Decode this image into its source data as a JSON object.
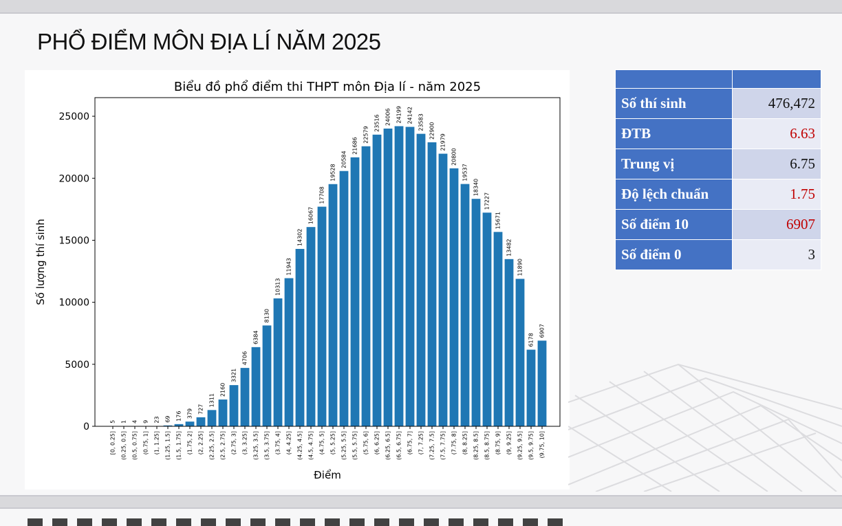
{
  "page": {
    "title": "PHỔ ĐIỂM MÔN ĐỊA LÍ NĂM 2025"
  },
  "chart_data": {
    "type": "bar",
    "title": "Biểu đồ phổ điểm thi THPT môn Địa lí - năm 2025",
    "xlabel": "Điểm",
    "ylabel": "Số lượng thí sinh",
    "ylim": [
      0,
      26500
    ],
    "yticks": [
      0,
      5000,
      10000,
      15000,
      20000,
      25000
    ],
    "grid": false,
    "color": "#1f77b4",
    "categories": [
      "[0, 0.25]",
      "(0.25, 0.5]",
      "(0.5, 0.75]",
      "(0.75, 1]",
      "(1, 1.25]",
      "(1.25, 1.5]",
      "(1.5, 1.75]",
      "(1.75, 2]",
      "(2, 2.25]",
      "(2.25, 2.5]",
      "(2.5, 2.75]",
      "(2.75, 3]",
      "(3, 3.25]",
      "(3.25, 3.5]",
      "(3.5, 3.75]",
      "(3.75, 4]",
      "(4, 4.25]",
      "(4.25, 4.5]",
      "(4.5, 4.75]",
      "(4.75, 5]",
      "(5, 5.25]",
      "(5.25, 5.5]",
      "(5.5, 5.75]",
      "(5.75, 6]",
      "(6, 6.25]",
      "(6.25, 6.5]",
      "(6.5, 6.75]",
      "(6.75, 7]",
      "(7, 7.25]",
      "(7.25, 7.5]",
      "(7.5, 7.75]",
      "(7.75, 8]",
      "(8, 8.25]",
      "(8.25, 8.5]",
      "(8.5, 8.75]",
      "(8.75, 9]",
      "(9, 9.25]",
      "(9.25, 9.5]",
      "(9.5, 9.75]",
      "(9.75, 10]"
    ],
    "values": [
      5,
      1,
      4,
      9,
      23,
      69,
      176,
      379,
      727,
      1311,
      2160,
      3321,
      4706,
      6384,
      8130,
      10313,
      11943,
      14302,
      16067,
      17708,
      19528,
      20584,
      21686,
      22579,
      23516,
      24006,
      24199,
      24142,
      23583,
      22900,
      21979,
      20800,
      19537,
      18340,
      17227,
      15671,
      13482,
      11890,
      6178,
      6907
    ]
  },
  "stats": {
    "rows": [
      {
        "label": "Số thí sinh",
        "value": "476,472",
        "color": "#111111"
      },
      {
        "label": "ĐTB",
        "value": "6.63",
        "color": "#c00000"
      },
      {
        "label": "Trung vị",
        "value": "6.75",
        "color": "#111111"
      },
      {
        "label": "Độ lệch chuẩn",
        "value": "1.75",
        "color": "#c00000"
      },
      {
        "label": "Số điểm 10",
        "value": "6907",
        "color": "#c00000"
      },
      {
        "label": "Số điểm 0",
        "value": "3",
        "color": "#111111"
      }
    ]
  }
}
